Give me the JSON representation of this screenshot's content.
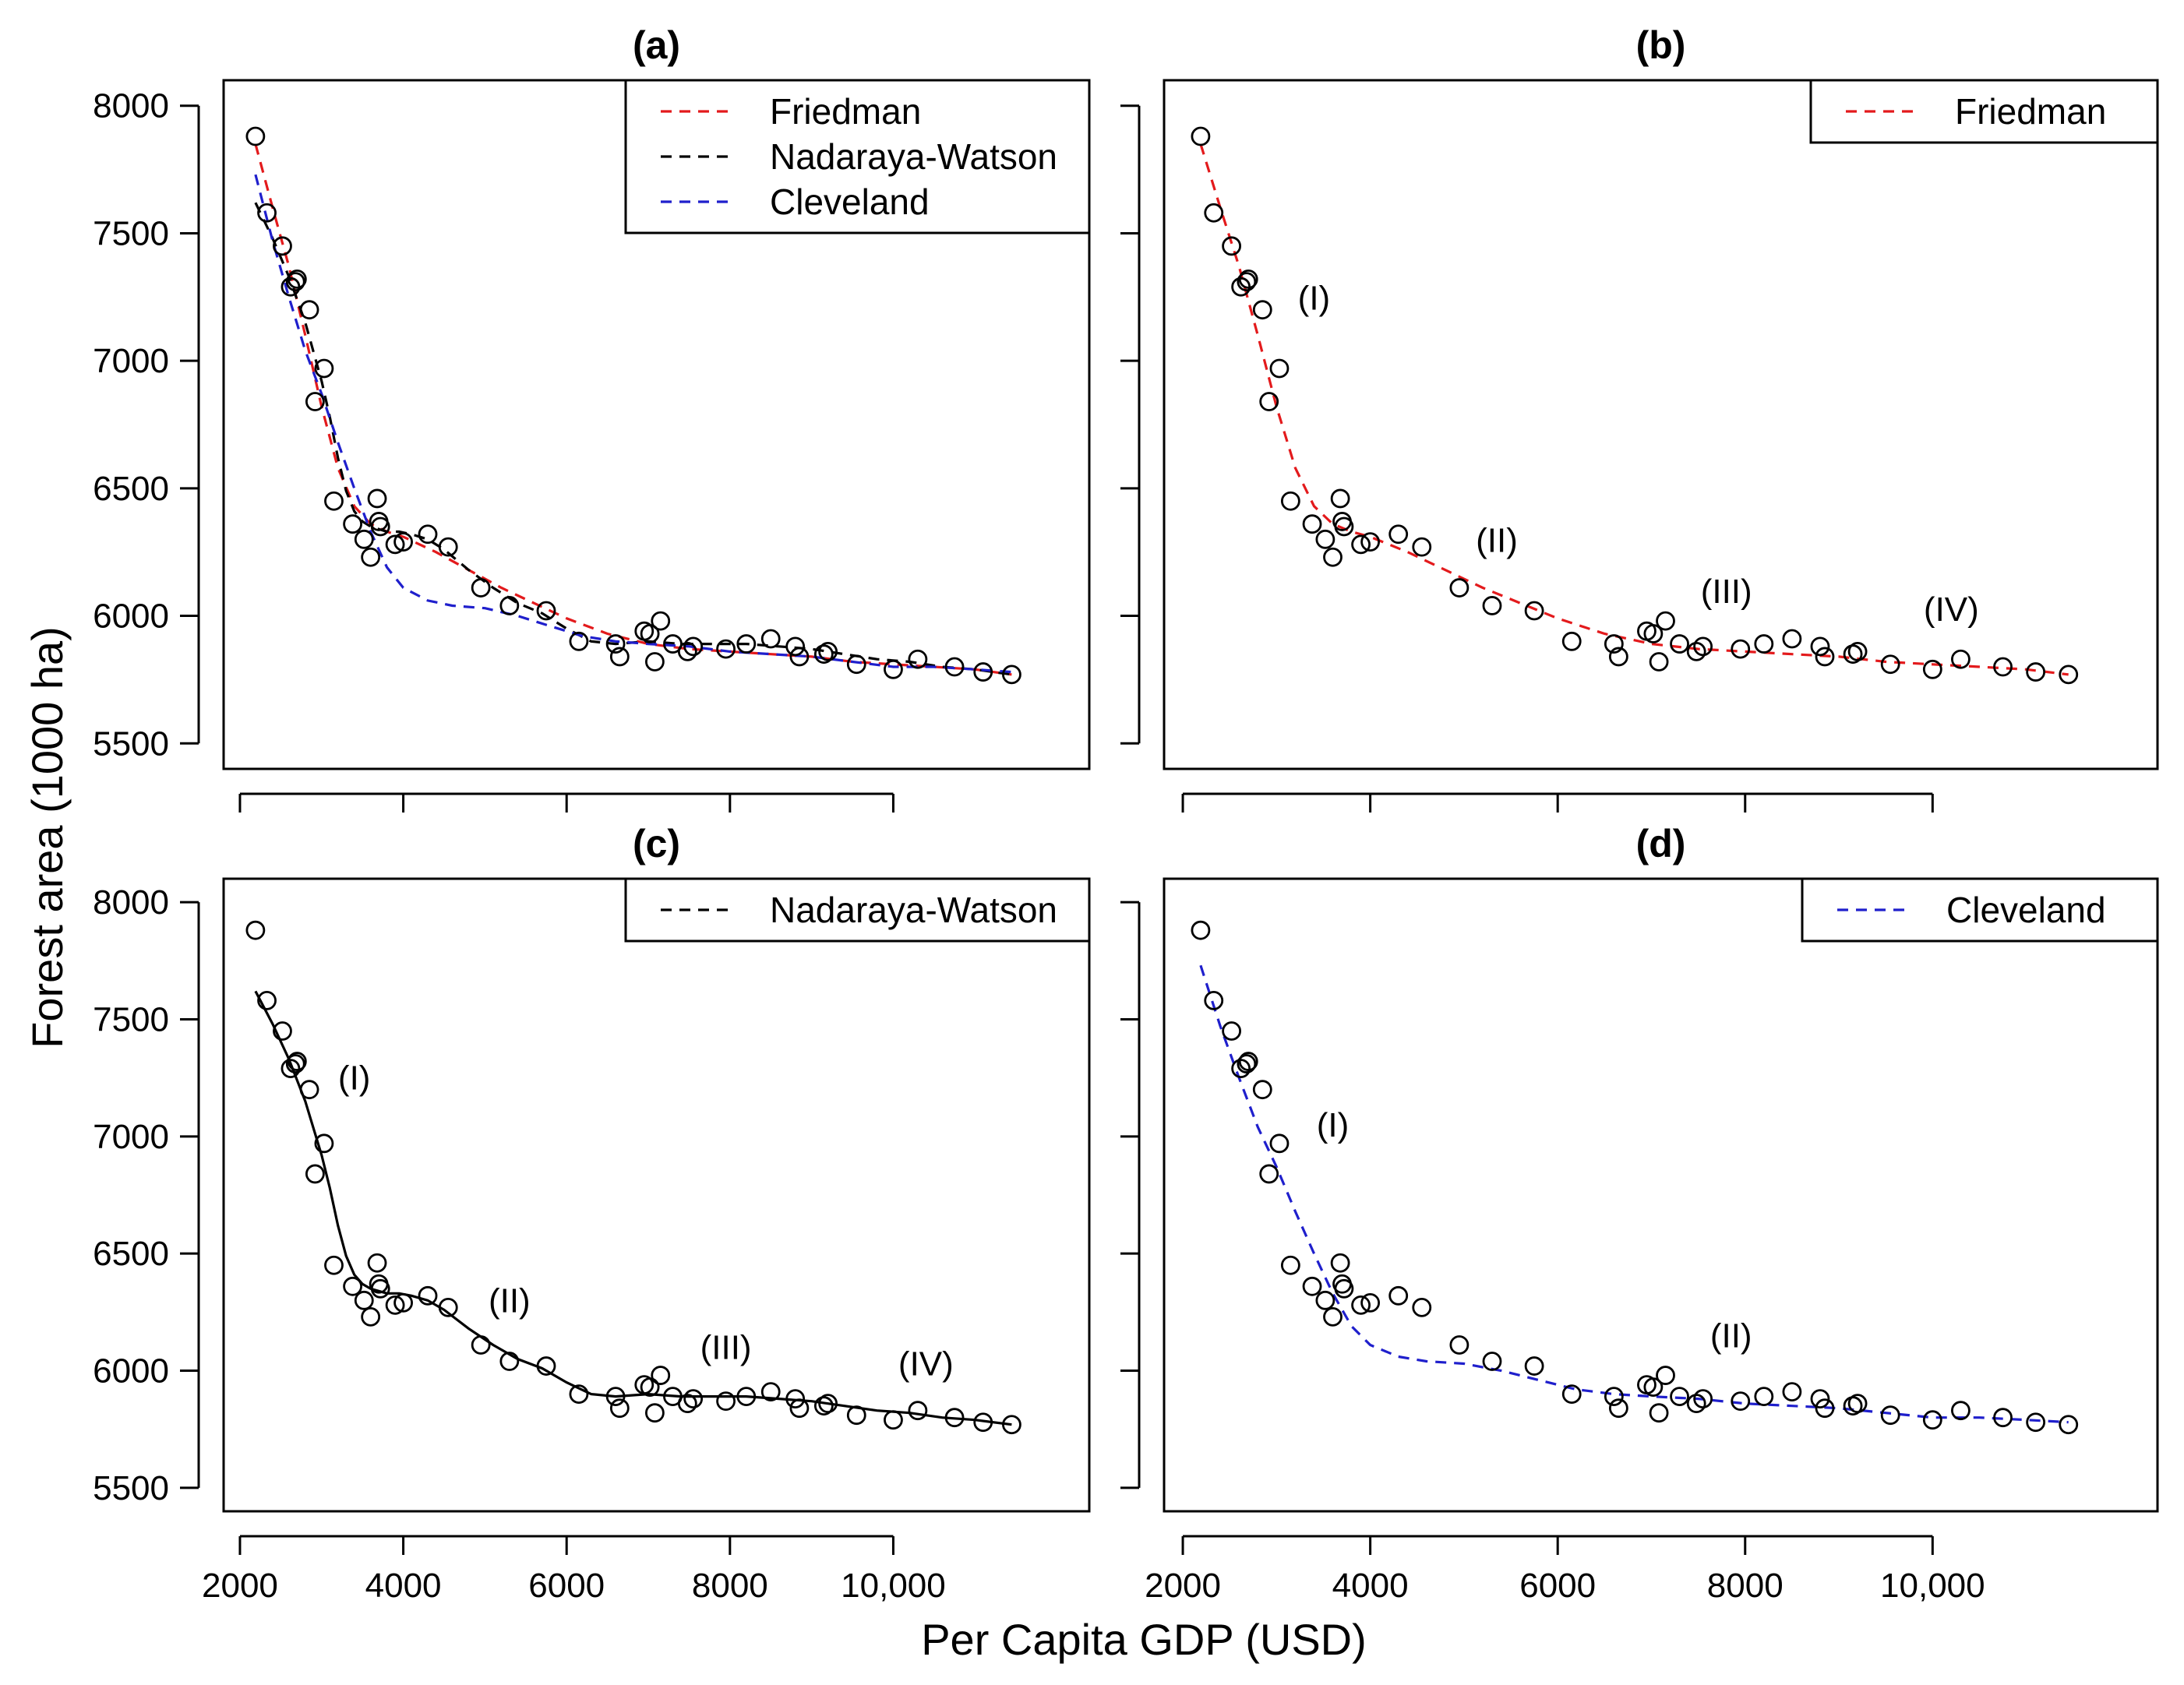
{
  "figure": {
    "ylabel": "Forest area (1000 ha)",
    "xlabel": "Per Capita GDP (USD)"
  },
  "colors": {
    "friedman": "#e31a1c",
    "nadaraya": "#000000",
    "cleveland": "#1f1fcc",
    "points": "#000000"
  },
  "chart_data": [
    {
      "type": "scatter",
      "id": "a",
      "title": "(a)",
      "xlim": [
        1800,
        12400
      ],
      "ylim": [
        5400,
        8100
      ],
      "xticks": [
        2000,
        4000,
        6000,
        8000,
        10000
      ],
      "xtick_labels": [
        "2000",
        "4000",
        "6000",
        "8000",
        "10,000"
      ],
      "yticks": [
        5500,
        6000,
        6500,
        7000,
        7500,
        8000
      ],
      "ytick_labels": [
        "5500",
        "6000",
        "6500",
        "7000",
        "7500",
        "8000"
      ],
      "legend": [
        "Friedman",
        "Nadaraya-Watson",
        "Cleveland"
      ],
      "lines": [
        "friedman",
        "nadaraya",
        "cleveland"
      ],
      "labels": []
    },
    {
      "type": "scatter",
      "id": "b",
      "title": "(b)",
      "xlim": [
        1800,
        12400
      ],
      "ylim": [
        5400,
        8100
      ],
      "xticks": [
        2000,
        4000,
        6000,
        8000,
        10000
      ],
      "xtick_labels": [
        "2000",
        "4000",
        "6000",
        "8000",
        "10,000"
      ],
      "yticks": [
        5500,
        6000,
        6500,
        7000,
        7500,
        8000
      ],
      "ytick_labels": [
        "5500",
        "6000",
        "6500",
        "7000",
        "7500",
        "8000"
      ],
      "legend": [
        "Friedman"
      ],
      "lines": [
        "friedman"
      ],
      "labels": [
        {
          "text": "(I)",
          "x": 3400,
          "y": 7200
        },
        {
          "text": "(II)",
          "x": 5350,
          "y": 6250
        },
        {
          "text": "(III)",
          "x": 7800,
          "y": 6050
        },
        {
          "text": "(IV)",
          "x": 10200,
          "y": 5980
        }
      ]
    },
    {
      "type": "scatter",
      "id": "c",
      "title": "(c)",
      "xlim": [
        1800,
        12400
      ],
      "ylim": [
        5400,
        8100
      ],
      "xticks": [
        2000,
        4000,
        6000,
        8000,
        10000
      ],
      "xtick_labels": [
        "2000",
        "4000",
        "6000",
        "8000",
        "10,000"
      ],
      "yticks": [
        5500,
        6000,
        6500,
        7000,
        7500,
        8000
      ],
      "ytick_labels": [
        "5500",
        "6000",
        "6500",
        "7000",
        "7500",
        "8000"
      ],
      "legend": [
        "Nadaraya-Watson"
      ],
      "lines": [
        "nadaraya"
      ],
      "labels": [
        {
          "text": "(I)",
          "x": 3400,
          "y": 7200
        },
        {
          "text": "(II)",
          "x": 5300,
          "y": 6250
        },
        {
          "text": "(III)",
          "x": 7950,
          "y": 6050
        },
        {
          "text": "(IV)",
          "x": 10400,
          "y": 5980
        }
      ]
    },
    {
      "type": "scatter",
      "id": "d",
      "title": "(d)",
      "xlim": [
        1800,
        12400
      ],
      "ylim": [
        5400,
        8100
      ],
      "xticks": [
        2000,
        4000,
        6000,
        8000,
        10000
      ],
      "xtick_labels": [
        "2000",
        "4000",
        "6000",
        "8000",
        "10,000"
      ],
      "yticks": [
        5500,
        6000,
        6500,
        7000,
        7500,
        8000
      ],
      "ytick_labels": [
        "5500",
        "6000",
        "6500",
        "7000",
        "7500",
        "8000"
      ],
      "legend": [
        "Cleveland"
      ],
      "lines": [
        "cleveland"
      ],
      "labels": [
        {
          "text": "(I)",
          "x": 3600,
          "y": 7000
        },
        {
          "text": "(II)",
          "x": 7850,
          "y": 6100
        }
      ]
    }
  ],
  "points": {
    "x": [
      2190,
      2330,
      2520,
      2620,
      2680,
      2700,
      2850,
      2920,
      3030,
      3150,
      3380,
      3520,
      3600,
      3680,
      3700,
      3720,
      3900,
      4000,
      4300,
      4550,
      4950,
      5300,
      5750,
      6150,
      6600,
      6650,
      6950,
      7020,
      7080,
      7150,
      7300,
      7480,
      7550,
      7950,
      8200,
      8500,
      8800,
      8850,
      9150,
      9200,
      9550,
      10000,
      10300,
      10750,
      11100,
      11450
    ],
    "y": [
      7880,
      7580,
      7450,
      7290,
      7310,
      7320,
      7200,
      6840,
      6970,
      6450,
      6360,
      6300,
      6230,
      6460,
      6370,
      6350,
      6280,
      6290,
      6320,
      6270,
      6110,
      6040,
      6020,
      5900,
      5890,
      5840,
      5940,
      5930,
      5820,
      5980,
      5890,
      5860,
      5880,
      5870,
      5890,
      5910,
      5880,
      5840,
      5850,
      5860,
      5810,
      5790,
      5830,
      5800,
      5780,
      5770
    ]
  },
  "curves": {
    "friedman": {
      "x": [
        2190,
        2400,
        2600,
        2800,
        3000,
        3200,
        3400,
        3600,
        3800,
        4000,
        4400,
        4800,
        5200,
        5600,
        6000,
        6500,
        7000,
        7500,
        8000,
        8500,
        9000,
        9500,
        10000,
        10500,
        11000,
        11450
      ],
      "y": [
        7850,
        7600,
        7370,
        7100,
        6820,
        6580,
        6430,
        6360,
        6330,
        6310,
        6250,
        6180,
        6110,
        6050,
        5990,
        5930,
        5890,
        5870,
        5860,
        5850,
        5840,
        5820,
        5810,
        5800,
        5790,
        5770
      ]
    },
    "nadaraya": {
      "x": [
        2190,
        2400,
        2600,
        2800,
        3000,
        3100,
        3200,
        3300,
        3400,
        3500,
        3600,
        3700,
        3800,
        3950,
        4100,
        4300,
        4500,
        4800,
        5100,
        5400,
        5700,
        6000,
        6300,
        6600,
        7000,
        7400,
        7800,
        8200,
        8600,
        9000,
        9400,
        9800,
        10200,
        10600,
        11000,
        11450
      ],
      "y": [
        7620,
        7480,
        7330,
        7150,
        6920,
        6780,
        6620,
        6490,
        6410,
        6370,
        6350,
        6340,
        6330,
        6330,
        6320,
        6300,
        6260,
        6180,
        6110,
        6050,
        6010,
        5950,
        5900,
        5890,
        5900,
        5890,
        5890,
        5890,
        5880,
        5870,
        5850,
        5830,
        5820,
        5800,
        5790,
        5770
      ]
    },
    "cleveland": {
      "x": [
        2190,
        2400,
        2600,
        2800,
        3000,
        3200,
        3400,
        3600,
        3800,
        4000,
        4300,
        4600,
        5000,
        5400,
        5800,
        6200,
        6600,
        7000,
        7500,
        8000,
        8500,
        9000,
        9500,
        10000,
        10500,
        11000,
        11450
      ],
      "y": [
        7730,
        7470,
        7250,
        7040,
        6870,
        6680,
        6500,
        6330,
        6190,
        6110,
        6060,
        6040,
        6030,
        6000,
        5960,
        5920,
        5900,
        5890,
        5880,
        5860,
        5850,
        5840,
        5820,
        5800,
        5800,
        5790,
        5780
      ]
    }
  }
}
